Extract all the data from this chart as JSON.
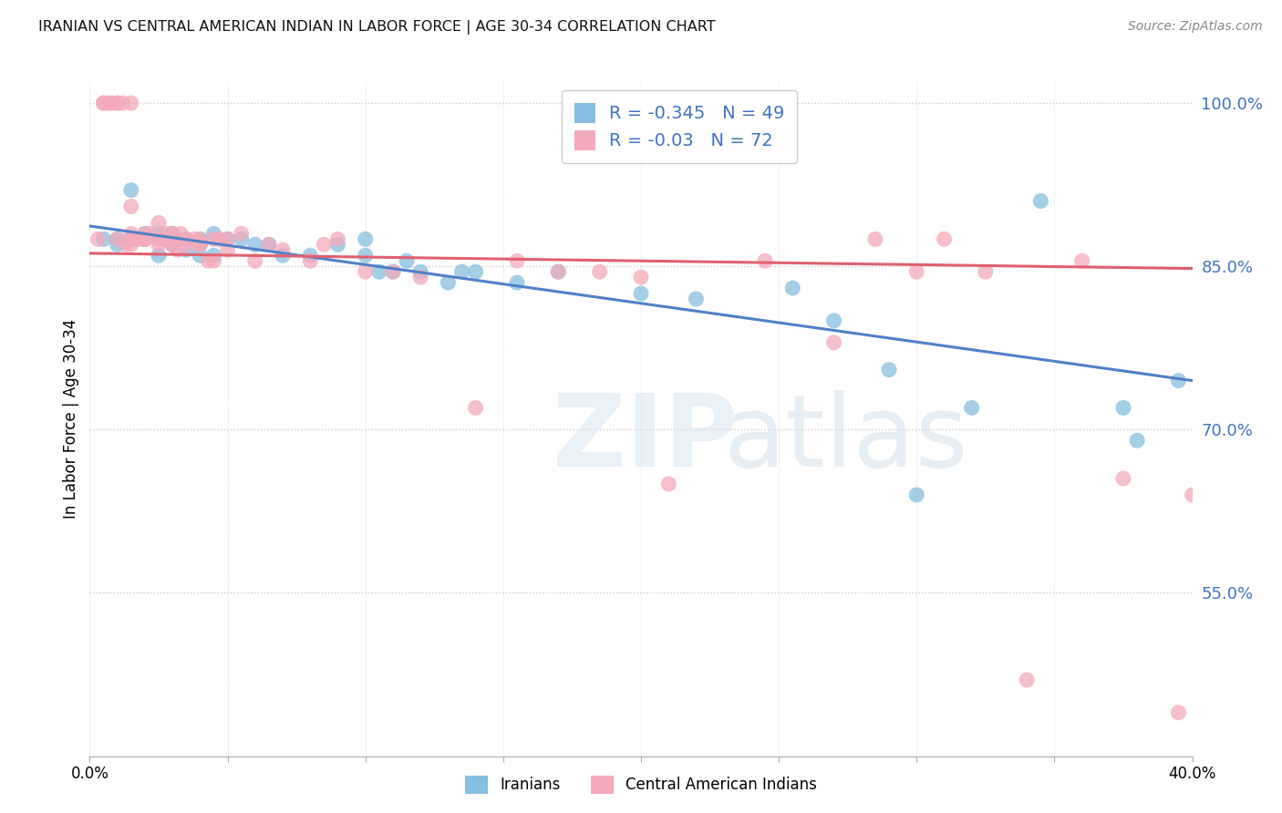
{
  "title": "IRANIAN VS CENTRAL AMERICAN INDIAN IN LABOR FORCE | AGE 30-34 CORRELATION CHART",
  "source": "Source: ZipAtlas.com",
  "ylabel": "In Labor Force | Age 30-34",
  "x_min": 0.0,
  "x_max": 0.4,
  "y_min": 0.4,
  "y_max": 1.02,
  "y_ticks": [
    0.4,
    0.55,
    0.7,
    0.85,
    1.0
  ],
  "y_tick_labels": [
    "",
    "55.0%",
    "70.0%",
    "85.0%",
    "100.0%"
  ],
  "x_ticks": [
    0.0,
    0.05,
    0.1,
    0.15,
    0.2,
    0.25,
    0.3,
    0.35,
    0.4
  ],
  "iranians_color": "#87BEDF",
  "central_american_color": "#F4AABB",
  "trend_iranian_color": "#5080C8",
  "trend_central_american_color": "#E06070",
  "R_iranian": -0.345,
  "N_iranian": 49,
  "R_central": -0.03,
  "N_central": 72,
  "legend_label_color": "#4472C4",
  "iranians_x": [
    0.005,
    0.01,
    0.01,
    0.015,
    0.015,
    0.02,
    0.02,
    0.025,
    0.025,
    0.025,
    0.03,
    0.03,
    0.03,
    0.035,
    0.035,
    0.04,
    0.04,
    0.04,
    0.045,
    0.045,
    0.05,
    0.055,
    0.06,
    0.065,
    0.07,
    0.08,
    0.09,
    0.1,
    0.1,
    0.105,
    0.11,
    0.115,
    0.12,
    0.13,
    0.135,
    0.14,
    0.155,
    0.17,
    0.2,
    0.22,
    0.255,
    0.27,
    0.29,
    0.3,
    0.32,
    0.345,
    0.375,
    0.38,
    0.395
  ],
  "iranians_y": [
    0.875,
    0.875,
    0.87,
    0.92,
    0.875,
    0.875,
    0.88,
    0.88,
    0.875,
    0.86,
    0.88,
    0.875,
    0.87,
    0.875,
    0.865,
    0.875,
    0.86,
    0.87,
    0.88,
    0.86,
    0.875,
    0.875,
    0.87,
    0.87,
    0.86,
    0.86,
    0.87,
    0.875,
    0.86,
    0.845,
    0.845,
    0.855,
    0.845,
    0.835,
    0.845,
    0.845,
    0.835,
    0.845,
    0.825,
    0.82,
    0.83,
    0.8,
    0.755,
    0.64,
    0.72,
    0.91,
    0.72,
    0.69,
    0.745
  ],
  "central_x": [
    0.003,
    0.005,
    0.005,
    0.007,
    0.008,
    0.01,
    0.01,
    0.01,
    0.012,
    0.013,
    0.015,
    0.015,
    0.015,
    0.015,
    0.015,
    0.017,
    0.018,
    0.02,
    0.02,
    0.02,
    0.02,
    0.02,
    0.022,
    0.025,
    0.025,
    0.025,
    0.027,
    0.028,
    0.03,
    0.03,
    0.03,
    0.032,
    0.033,
    0.035,
    0.035,
    0.038,
    0.04,
    0.04,
    0.04,
    0.043,
    0.045,
    0.045,
    0.047,
    0.05,
    0.05,
    0.055,
    0.06,
    0.065,
    0.07,
    0.08,
    0.085,
    0.09,
    0.1,
    0.11,
    0.12,
    0.14,
    0.155,
    0.17,
    0.185,
    0.2,
    0.21,
    0.245,
    0.27,
    0.285,
    0.3,
    0.31,
    0.325,
    0.34,
    0.36,
    0.375,
    0.395,
    0.4
  ],
  "central_y": [
    0.875,
    1.0,
    1.0,
    1.0,
    1.0,
    1.0,
    1.0,
    0.875,
    1.0,
    0.87,
    1.0,
    0.87,
    0.875,
    0.88,
    0.905,
    0.875,
    0.875,
    0.875,
    0.88,
    0.875,
    0.875,
    0.875,
    0.88,
    0.875,
    0.87,
    0.89,
    0.875,
    0.88,
    0.88,
    0.87,
    0.875,
    0.865,
    0.88,
    0.87,
    0.875,
    0.875,
    0.875,
    0.87,
    0.87,
    0.855,
    0.875,
    0.855,
    0.875,
    0.875,
    0.865,
    0.88,
    0.855,
    0.87,
    0.865,
    0.855,
    0.87,
    0.875,
    0.845,
    0.845,
    0.84,
    0.72,
    0.855,
    0.845,
    0.845,
    0.84,
    0.65,
    0.855,
    0.78,
    0.875,
    0.845,
    0.875,
    0.845,
    0.47,
    0.855,
    0.655,
    0.44,
    0.64
  ]
}
